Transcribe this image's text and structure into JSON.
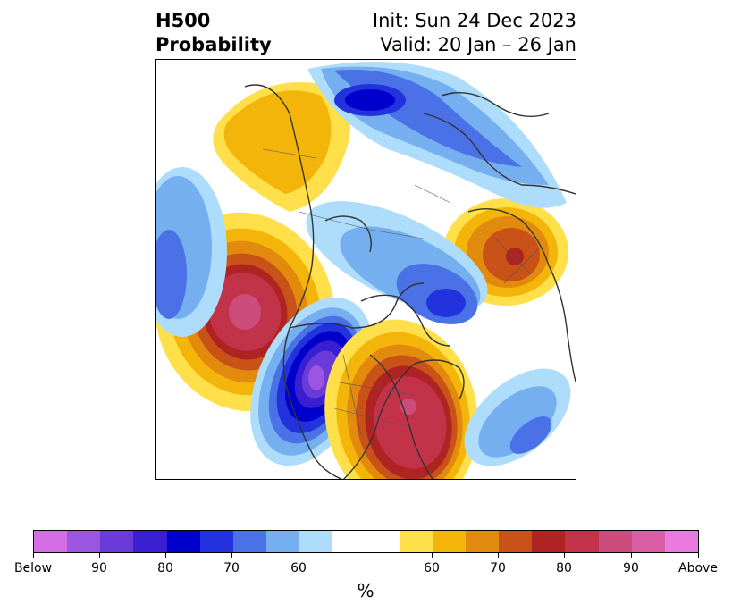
{
  "header": {
    "title_line1": "H500",
    "title_line2": "Probability",
    "init_label": "Init: Sun 24 Dec 2023",
    "valid_label": "Valid: 20 Jan – 26 Jan"
  },
  "colorbar": {
    "unit": "%",
    "colors": [
      "#d56de6",
      "#9b55e0",
      "#6a3bd8",
      "#3a1fd2",
      "#0000cc",
      "#2233dd",
      "#4a72e6",
      "#76aff0",
      "#aeddfb",
      "#ffffff",
      "#ffe04a",
      "#f4b50b",
      "#e28a0e",
      "#c95218",
      "#b02323",
      "#c2334a",
      "#cc4c7b",
      "#da5ea5",
      "#e87ae0"
    ],
    "labels": [
      "Below",
      "90",
      "80",
      "70",
      "60",
      "60",
      "70",
      "80",
      "90",
      "Above"
    ]
  },
  "map": {
    "projection": "polar-stereographic",
    "anomaly_centers": [
      {
        "sign": "below",
        "max_level": "90",
        "color": "#9b55e0"
      },
      {
        "sign": "above",
        "max_level": "90",
        "color": "#cc4c7b"
      },
      {
        "sign": "above",
        "max_level": "90",
        "color": "#cc4c7b"
      },
      {
        "sign": "above",
        "max_level": "80",
        "color": "#c2334a"
      },
      {
        "sign": "below",
        "max_level": "70",
        "color": "#2233dd"
      },
      {
        "sign": "below",
        "max_level": "70",
        "color": "#2233dd"
      }
    ]
  }
}
